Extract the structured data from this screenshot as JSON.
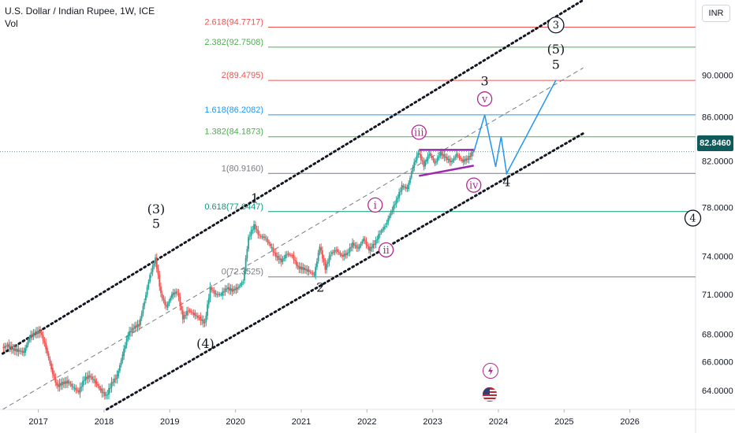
{
  "legend": {
    "symbol": "U.S. Dollar / Indian Rupee, 1W, ICE",
    "volume_label": "Vol"
  },
  "currency_button": "INR",
  "last_price": "82.8460",
  "colors": {
    "up": "#26a69a",
    "down": "#ef5350",
    "channel": "#131722",
    "projection": "#2196f3",
    "triangle": "#9c27b0",
    "wave_circle": "#b02a8f",
    "price_badge": "#0f5b5b"
  },
  "icons": [
    "lightning-icon",
    "us-flag-icon"
  ],
  "chart_data": {
    "type": "candlestick",
    "x_axis": {
      "ticks": [
        "2017",
        "2018",
        "2019",
        "2020",
        "2021",
        "2022",
        "2023",
        "2024",
        "2025",
        "2026"
      ],
      "range": [
        "2016-06",
        "2026-12"
      ]
    },
    "y_axis": {
      "ticks": [
        "64.0000",
        "66.0000",
        "68.0000",
        "71.0000",
        "74.0000",
        "78.0000",
        "82.0000",
        "86.0000",
        "90.0000"
      ],
      "scale": "log",
      "range": [
        62.7,
        97.6
      ]
    },
    "grid": false,
    "price_data": [
      [
        "2016-06",
        67.0
      ],
      [
        "2016-07",
        67.2
      ],
      [
        "2016-08",
        66.9
      ],
      [
        "2016-09",
        66.8
      ],
      [
        "2016-10",
        66.7
      ],
      [
        "2016-11",
        67.8
      ],
      [
        "2016-12",
        68.1
      ],
      [
        "2017-01",
        68.2
      ],
      [
        "2017-02",
        67.0
      ],
      [
        "2017-03",
        65.5
      ],
      [
        "2017-04",
        64.3
      ],
      [
        "2017-05",
        64.5
      ],
      [
        "2017-06",
        64.6
      ],
      [
        "2017-07",
        64.2
      ],
      [
        "2017-08",
        63.9
      ],
      [
        "2017-09",
        64.8
      ],
      [
        "2017-10",
        65.0
      ],
      [
        "2017-11",
        64.6
      ],
      [
        "2017-12",
        64.0
      ],
      [
        "2018-01",
        63.6
      ],
      [
        "2018-02",
        64.5
      ],
      [
        "2018-03",
        65.0
      ],
      [
        "2018-04",
        66.5
      ],
      [
        "2018-05",
        68.0
      ],
      [
        "2018-06",
        68.5
      ],
      [
        "2018-07",
        68.7
      ],
      [
        "2018-08",
        70.5
      ],
      [
        "2018-09",
        72.5
      ],
      [
        "2018-10",
        73.8
      ],
      [
        "2018-11",
        71.0
      ],
      [
        "2018-12",
        70.0
      ],
      [
        "2019-01",
        71.0
      ],
      [
        "2019-02",
        71.2
      ],
      [
        "2019-03",
        69.2
      ],
      [
        "2019-04",
        69.8
      ],
      [
        "2019-05",
        69.5
      ],
      [
        "2019-06",
        69.2
      ],
      [
        "2019-07",
        68.8
      ],
      [
        "2019-08",
        71.5
      ],
      [
        "2019-09",
        71.0
      ],
      [
        "2019-10",
        71.0
      ],
      [
        "2019-11",
        71.5
      ],
      [
        "2019-12",
        71.3
      ],
      [
        "2020-01",
        71.5
      ],
      [
        "2020-02",
        72.0
      ],
      [
        "2020-03",
        75.5
      ],
      [
        "2020-04",
        76.5
      ],
      [
        "2020-05",
        75.6
      ],
      [
        "2020-06",
        75.5
      ],
      [
        "2020-07",
        74.8
      ],
      [
        "2020-08",
        74.0
      ],
      [
        "2020-09",
        73.6
      ],
      [
        "2020-10",
        74.2
      ],
      [
        "2020-11",
        74.0
      ],
      [
        "2020-12",
        73.1
      ],
      [
        "2021-01",
        73.0
      ],
      [
        "2021-02",
        72.8
      ],
      [
        "2021-03",
        72.5
      ],
      [
        "2021-04",
        74.8
      ],
      [
        "2021-05",
        73.0
      ],
      [
        "2021-06",
        74.2
      ],
      [
        "2021-07",
        74.5
      ],
      [
        "2021-08",
        74.0
      ],
      [
        "2021-09",
        74.2
      ],
      [
        "2021-10",
        75.0
      ],
      [
        "2021-11",
        74.6
      ],
      [
        "2021-12",
        75.4
      ],
      [
        "2022-01",
        74.5
      ],
      [
        "2022-02",
        75.0
      ],
      [
        "2022-03",
        75.9
      ],
      [
        "2022-04",
        76.5
      ],
      [
        "2022-05",
        77.6
      ],
      [
        "2022-06",
        78.6
      ],
      [
        "2022-07",
        79.8
      ],
      [
        "2022-08",
        79.6
      ],
      [
        "2022-09",
        81.5
      ],
      [
        "2022-10",
        82.8
      ],
      [
        "2022-11",
        81.6
      ],
      [
        "2022-12",
        82.7
      ],
      [
        "2023-01",
        81.8
      ],
      [
        "2023-02",
        82.7
      ],
      [
        "2023-03",
        82.3
      ],
      [
        "2023-04",
        81.9
      ],
      [
        "2023-05",
        82.6
      ],
      [
        "2023-06",
        82.0
      ],
      [
        "2023-07",
        82.2
      ],
      [
        "2023-08",
        82.846
      ]
    ],
    "fibonacci_levels": [
      {
        "label": "2.618(94.7717)",
        "value": 94.7717,
        "color": "#ef5350"
      },
      {
        "label": "2.382(92.7508)",
        "value": 92.7508,
        "color": "#4caf50"
      },
      {
        "label": "2(89.4795)",
        "value": 89.4795,
        "color": "#ef5350"
      },
      {
        "label": "1.618(86.2082)",
        "value": 86.2082,
        "color": "#2196f3"
      },
      {
        "label": "1.382(84.1873)",
        "value": 84.1873,
        "color": "#4caf50"
      },
      {
        "label": "1(80.9160)",
        "value": 80.916,
        "color": "#787b86"
      },
      {
        "label": "0.618(77.6447)",
        "value": 77.6447,
        "color": "#089981"
      },
      {
        "label": "0(72.3525)",
        "value": 72.3525,
        "color": "#787b86"
      }
    ],
    "channel_lines": {
      "upper": [
        [
          "2016-06",
          66.6
        ],
        [
          "2025-04",
          97.6
        ]
      ],
      "middle": [
        [
          "2016-06",
          62.7
        ],
        [
          "2025-04",
          90.7
        ]
      ],
      "lower": [
        [
          "2018-01",
          62.7
        ],
        [
          "2025-04",
          84.5
        ]
      ]
    },
    "projection_path": [
      [
        "2023-08",
        82.8
      ],
      [
        "2023-10",
        86.2
      ],
      [
        "2023-12",
        81.5
      ],
      [
        "2024-01",
        84.2
      ],
      [
        "2024-02",
        80.9
      ],
      [
        "2024-11",
        89.5
      ]
    ],
    "triangle": {
      "upper": [
        [
          "2022-10",
          83.0
        ],
        [
          "2023-08",
          83.0
        ]
      ],
      "lower": [
        [
          "2022-10",
          80.7
        ],
        [
          "2023-08",
          81.6
        ]
      ]
    },
    "wave_labels": [
      {
        "text": "(3)",
        "date": "2018-10",
        "price": 77.5,
        "style": "plain"
      },
      {
        "text": "5",
        "date": "2018-10",
        "price": 76.3,
        "style": "plain"
      },
      {
        "text": "(4)",
        "date": "2019-07",
        "price": 67.0,
        "style": "plain"
      },
      {
        "text": "1",
        "date": "2020-04",
        "price": 78.4,
        "style": "plain"
      },
      {
        "text": "2",
        "date": "2021-04",
        "price": 71.2,
        "style": "plain"
      },
      {
        "text": "i",
        "date": "2022-02",
        "price": 78.2,
        "style": "circle"
      },
      {
        "text": "ii",
        "date": "2022-04",
        "price": 74.5,
        "style": "circle"
      },
      {
        "text": "iii",
        "date": "2022-10",
        "price": 84.6,
        "style": "circle"
      },
      {
        "text": "iv",
        "date": "2023-08",
        "price": 79.9,
        "style": "circle"
      },
      {
        "text": "v",
        "date": "2023-10",
        "price": 87.7,
        "style": "circle"
      },
      {
        "text": "3",
        "date": "2023-10",
        "price": 89.0,
        "style": "plain"
      },
      {
        "text": "4",
        "date": "2024-02",
        "price": 79.8,
        "style": "plain"
      },
      {
        "text": "3",
        "date": "2024-11",
        "price": 95.0,
        "style": "circle"
      },
      {
        "text": "(5)",
        "date": "2024-11",
        "price": 92.1,
        "style": "plain"
      },
      {
        "text": "5",
        "date": "2024-11",
        "price": 90.6,
        "style": "plain"
      },
      {
        "text": "4",
        "date": "2026-12",
        "price": 77.1,
        "style": "circle"
      }
    ]
  }
}
